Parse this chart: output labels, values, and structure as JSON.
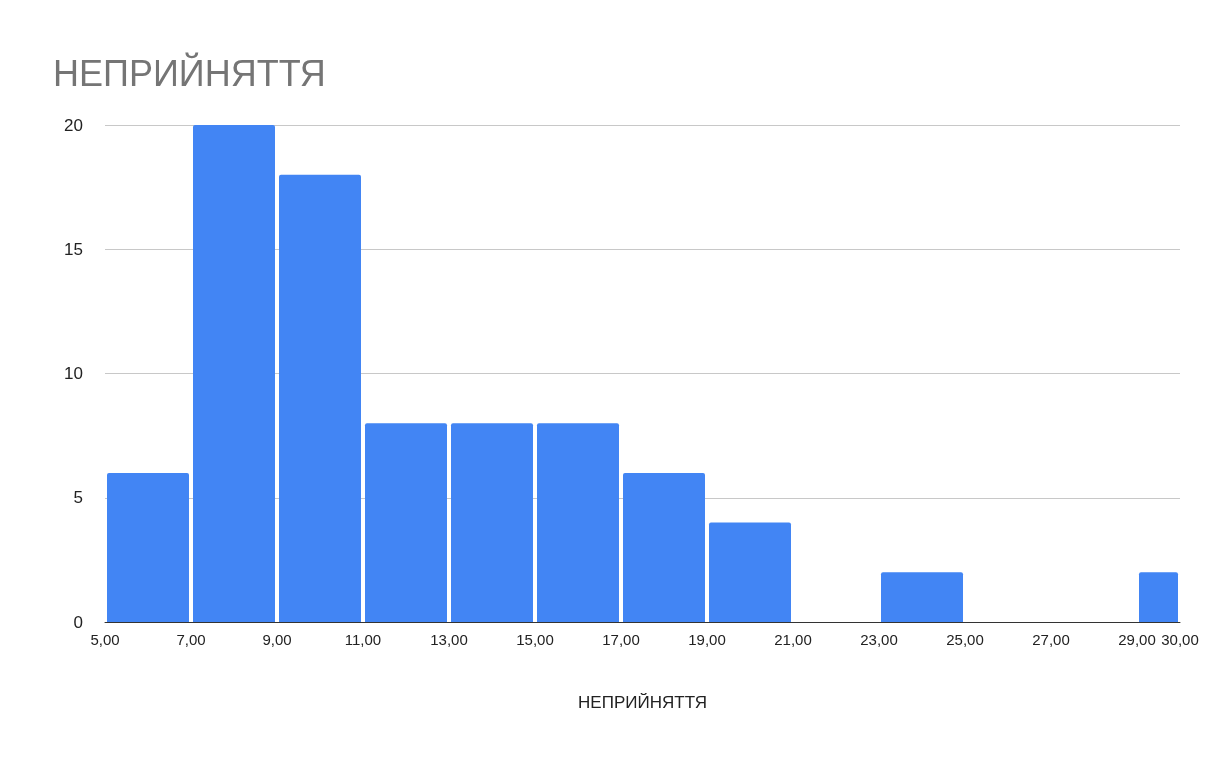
{
  "chart_data": {
    "type": "histogram",
    "title": "НЕПРИЙНЯТТЯ",
    "xlabel": "НЕПРИЙНЯТТЯ",
    "bins": [
      5,
      7,
      9,
      11,
      13,
      15,
      17,
      19,
      21,
      23,
      25,
      29,
      30
    ],
    "values": [
      6,
      20,
      18,
      8,
      8,
      8,
      6,
      4,
      0,
      2,
      0,
      2
    ],
    "color": "#4285f4",
    "xlim": [
      5,
      30
    ],
    "xticks": [
      {
        "value": 5,
        "label": "5,00"
      },
      {
        "value": 7,
        "label": "7,00"
      },
      {
        "value": 9,
        "label": "9,00"
      },
      {
        "value": 11,
        "label": "11,00"
      },
      {
        "value": 13,
        "label": "13,00"
      },
      {
        "value": 15,
        "label": "15,00"
      },
      {
        "value": 17,
        "label": "17,00"
      },
      {
        "value": 19,
        "label": "19,00"
      },
      {
        "value": 21,
        "label": "21,00"
      },
      {
        "value": 23,
        "label": "23,00"
      },
      {
        "value": 25,
        "label": "25,00"
      },
      {
        "value": 27,
        "label": "27,00"
      },
      {
        "value": 29,
        "label": "29,00"
      },
      {
        "value": 30,
        "label": "30,00"
      }
    ],
    "ylim": [
      0,
      20
    ],
    "yticks": [
      0,
      5,
      10,
      15,
      20
    ],
    "grid": "y"
  }
}
